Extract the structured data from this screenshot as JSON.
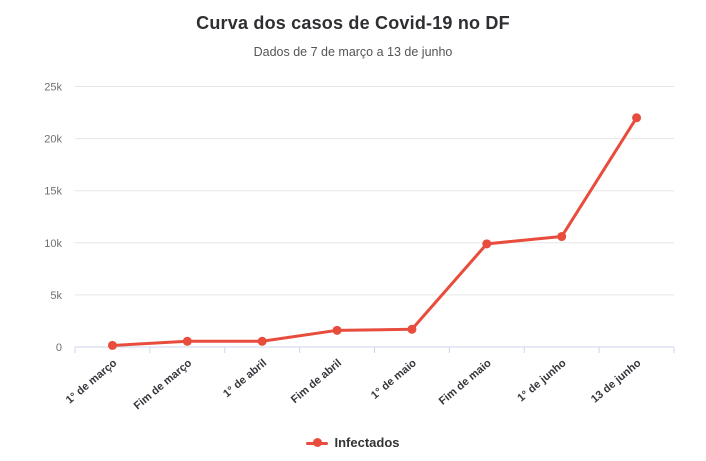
{
  "header": {
    "title": "Curva dos casos de Covid-19 no DF",
    "subtitle": "Dados de 7 de março a 13 de junho"
  },
  "colors": {
    "series_red": "#e84c3c",
    "gridline": "#e6e6e6",
    "axis_line": "#ccd6eb",
    "title_text": "#2f2f33",
    "subtitle_text": "#555555",
    "ytick_text": "#707070",
    "xtick_text": "#35353b",
    "background": "#ffffff"
  },
  "legend": {
    "items": [
      {
        "label": "Infectados",
        "color": "#e84c3c"
      }
    ],
    "position": "bottom"
  },
  "chart_data": {
    "type": "line",
    "title": "Curva dos casos de Covid-19 no DF",
    "subtitle": "Dados de 7 de março a 13 de junho",
    "categories": [
      "1° de março",
      "Fim de março",
      "1° de abril",
      "Fim de abril",
      "1° de maio",
      "Fim de maio",
      "1° de junho",
      "13 de junho"
    ],
    "series": [
      {
        "name": "Infectados",
        "color": "#e84c3c",
        "values": [
          150,
          550,
          550,
          1600,
          1700,
          9900,
          10600,
          22000
        ]
      }
    ],
    "xlabel": "",
    "ylabel": "",
    "ylim": [
      0,
      25000
    ],
    "ytick_values": [
      0,
      5000,
      10000,
      15000,
      20000,
      25000
    ],
    "ytick_labels": [
      "0",
      "5k",
      "10k",
      "15k",
      "20k",
      "25k"
    ],
    "grid": true,
    "x_label_rotation": -40,
    "legend_position": "bottom"
  }
}
